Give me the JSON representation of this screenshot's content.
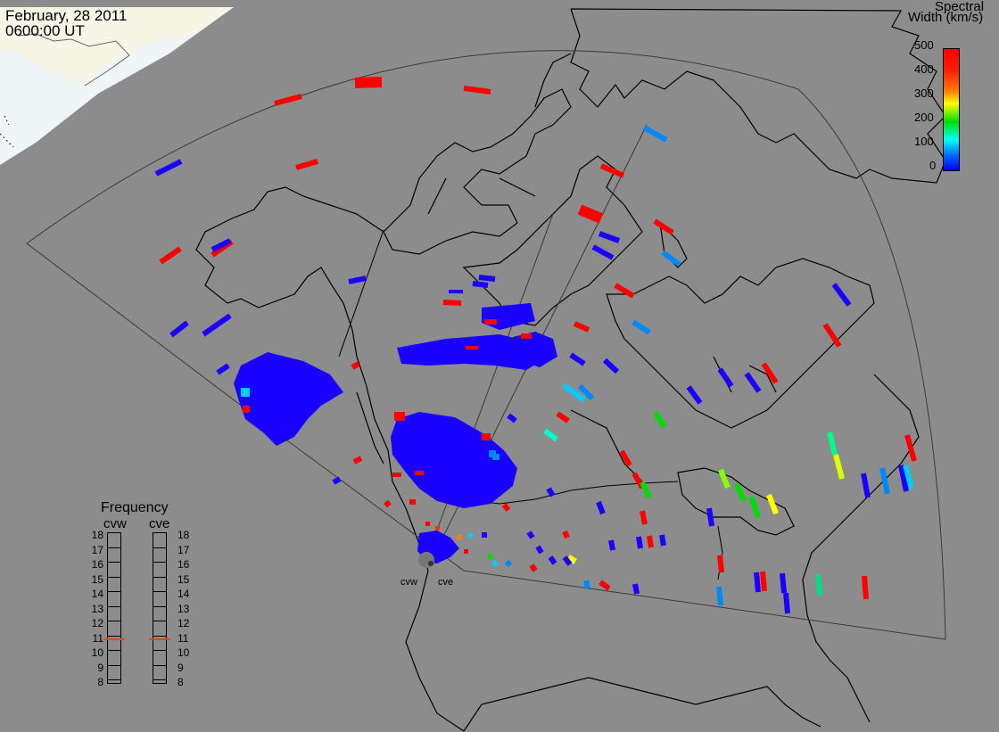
{
  "header": {
    "date": "February, 28 2011",
    "time": "0600:00 UT"
  },
  "colorbar": {
    "title_line1": "Spectral",
    "title_line2": "Width (km/s)",
    "ticks": [
      "500",
      "400",
      "300",
      "200",
      "100",
      "0"
    ],
    "colors": [
      "#ff0000",
      "#ff8000",
      "#ffff00",
      "#00dd00",
      "#00ffff",
      "#0066ff",
      "#0000ff"
    ]
  },
  "frequency": {
    "title": "Frequency",
    "radars": [
      "cvw",
      "cve"
    ],
    "ticks": [
      "18",
      "17",
      "16",
      "15",
      "14",
      "13",
      "12",
      "11",
      "10",
      "9",
      "8"
    ],
    "selected": {
      "cvw": 10.8,
      "cve": 10.8
    },
    "marker_color": "#ff4400"
  },
  "sites": [
    "cvw",
    "cve"
  ],
  "colors": {
    "background": "#8c8c8c",
    "scatter_main": "#1a00ff",
    "land_outline": "#000000",
    "ice": "#f6f6e8",
    "sea_ice": "#e6f3fa"
  }
}
